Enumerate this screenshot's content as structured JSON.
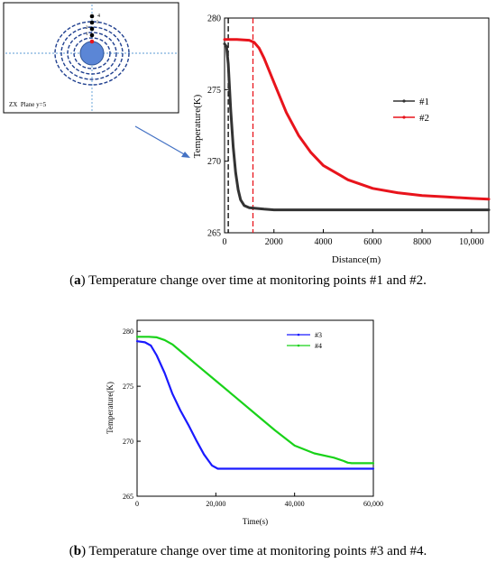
{
  "figure": {
    "schematic": {
      "plane_label": "ZX  Plane y=5",
      "point_labels": [
        "4",
        "3",
        "2",
        "1"
      ]
    },
    "captions": [
      {
        "tag": "a",
        "text": " Temperature change over time at monitoring points #1 and #2."
      },
      {
        "tag": "b",
        "text": " Temperature change over time at monitoring points #3 and #4."
      }
    ]
  },
  "chart_data": [
    {
      "type": "line",
      "title": "",
      "xlabel": "Distance(m)",
      "ylabel": "Temperature(K)",
      "xlim": [
        0,
        10700
      ],
      "ylim": [
        265,
        280
      ],
      "xticks": [
        0,
        2000,
        4000,
        6000,
        8000,
        10000
      ],
      "xtick_labels": [
        "0",
        "2000",
        "4000",
        "6000",
        "8000",
        "10,000"
      ],
      "yticks": [
        265,
        270,
        275,
        280
      ],
      "legend_position": "center-right",
      "vlines": [
        {
          "x": 150,
          "color": "#000000",
          "style": "dashed"
        },
        {
          "x": 1150,
          "color": "#e8141c",
          "style": "dashed"
        }
      ],
      "series": [
        {
          "name": "#1",
          "color": "#333333",
          "x": [
            0,
            80,
            150,
            250,
            350,
            450,
            550,
            650,
            800,
            1000,
            1300,
            1600,
            2000,
            4000,
            8000,
            10700
          ],
          "y": [
            278.2,
            278.0,
            276.8,
            273.6,
            271.0,
            269.2,
            268.0,
            267.3,
            266.9,
            266.75,
            266.7,
            266.65,
            266.6,
            266.6,
            266.6,
            266.6
          ]
        },
        {
          "name": "#2",
          "color": "#e8141c",
          "x": [
            0,
            500,
            1000,
            1200,
            1400,
            1600,
            2000,
            2500,
            3000,
            3500,
            4000,
            5000,
            6000,
            7000,
            8000,
            9000,
            10000,
            10700
          ],
          "y": [
            278.5,
            278.5,
            278.45,
            278.3,
            277.9,
            277.2,
            275.5,
            273.4,
            271.8,
            270.6,
            269.7,
            268.7,
            268.1,
            267.8,
            267.6,
            267.5,
            267.4,
            267.35
          ]
        }
      ]
    },
    {
      "type": "line",
      "title": "",
      "xlabel": "Time(s)",
      "ylabel": "Temperature(K)",
      "xlim": [
        0,
        60000
      ],
      "ylim": [
        265,
        281
      ],
      "xticks": [
        0,
        20000,
        40000,
        60000
      ],
      "xtick_labels": [
        "0",
        "20,000",
        "40,000",
        "60,000"
      ],
      "yticks": [
        265,
        270,
        275,
        280
      ],
      "legend_position": "top-right",
      "series": [
        {
          "name": "#3",
          "color": "#1a1aff",
          "x": [
            0,
            2000,
            3500,
            5000,
            7000,
            9000,
            11000,
            13000,
            15000,
            17000,
            19000,
            20500,
            21500,
            23000,
            30000,
            45000,
            54000,
            55000,
            60000
          ],
          "y": [
            279.1,
            279.0,
            278.7,
            277.8,
            276.2,
            274.3,
            272.8,
            271.5,
            270.1,
            268.8,
            267.8,
            267.5,
            267.5,
            267.5,
            267.5,
            267.5,
            267.5,
            267.5,
            267.5
          ]
        },
        {
          "name": "#4",
          "color": "#19d219",
          "x": [
            0,
            3000,
            5000,
            7000,
            9000,
            11000,
            15000,
            20000,
            25000,
            30000,
            35000,
            40000,
            45000,
            50000,
            52500,
            53500,
            54500,
            55000,
            60000
          ],
          "y": [
            279.5,
            279.5,
            279.45,
            279.2,
            278.8,
            278.2,
            277.0,
            275.5,
            274.0,
            272.5,
            271.0,
            269.6,
            268.9,
            268.5,
            268.2,
            268.05,
            268.0,
            268.0,
            268.0
          ]
        }
      ]
    }
  ]
}
